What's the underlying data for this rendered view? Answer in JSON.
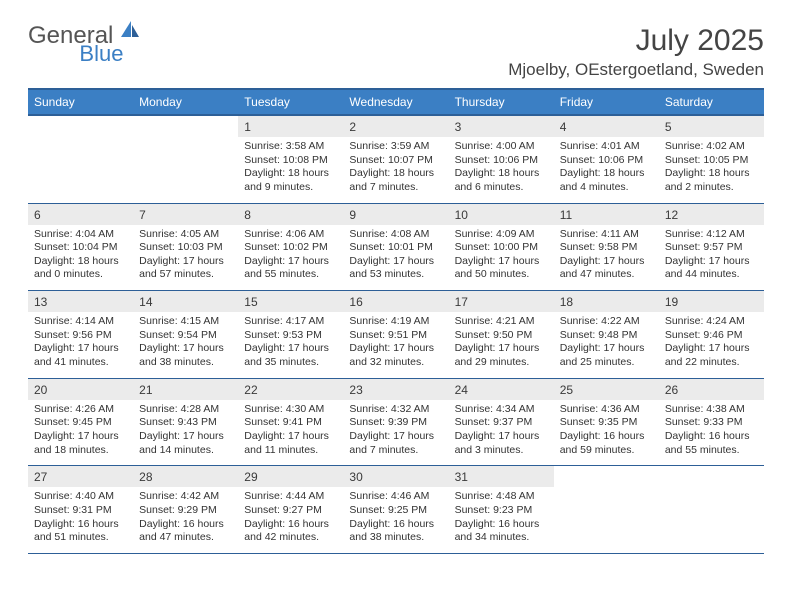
{
  "logo": {
    "text1": "General",
    "text2": "Blue"
  },
  "title": "July 2025",
  "location": "Mjoelby, OEstergoetland, Sweden",
  "colors": {
    "header_bg": "#3b7fc4",
    "header_border": "#2d5f97",
    "daynum_bg": "#ebebeb",
    "text": "#333333",
    "logo_gray": "#555555",
    "logo_blue": "#3b7fc4"
  },
  "weekdays": [
    "Sunday",
    "Monday",
    "Tuesday",
    "Wednesday",
    "Thursday",
    "Friday",
    "Saturday"
  ],
  "weeks": [
    [
      null,
      null,
      {
        "n": "1",
        "sr": "3:58 AM",
        "ss": "10:08 PM",
        "dl": "18 hours and 9 minutes."
      },
      {
        "n": "2",
        "sr": "3:59 AM",
        "ss": "10:07 PM",
        "dl": "18 hours and 7 minutes."
      },
      {
        "n": "3",
        "sr": "4:00 AM",
        "ss": "10:06 PM",
        "dl": "18 hours and 6 minutes."
      },
      {
        "n": "4",
        "sr": "4:01 AM",
        "ss": "10:06 PM",
        "dl": "18 hours and 4 minutes."
      },
      {
        "n": "5",
        "sr": "4:02 AM",
        "ss": "10:05 PM",
        "dl": "18 hours and 2 minutes."
      }
    ],
    [
      {
        "n": "6",
        "sr": "4:04 AM",
        "ss": "10:04 PM",
        "dl": "18 hours and 0 minutes."
      },
      {
        "n": "7",
        "sr": "4:05 AM",
        "ss": "10:03 PM",
        "dl": "17 hours and 57 minutes."
      },
      {
        "n": "8",
        "sr": "4:06 AM",
        "ss": "10:02 PM",
        "dl": "17 hours and 55 minutes."
      },
      {
        "n": "9",
        "sr": "4:08 AM",
        "ss": "10:01 PM",
        "dl": "17 hours and 53 minutes."
      },
      {
        "n": "10",
        "sr": "4:09 AM",
        "ss": "10:00 PM",
        "dl": "17 hours and 50 minutes."
      },
      {
        "n": "11",
        "sr": "4:11 AM",
        "ss": "9:58 PM",
        "dl": "17 hours and 47 minutes."
      },
      {
        "n": "12",
        "sr": "4:12 AM",
        "ss": "9:57 PM",
        "dl": "17 hours and 44 minutes."
      }
    ],
    [
      {
        "n": "13",
        "sr": "4:14 AM",
        "ss": "9:56 PM",
        "dl": "17 hours and 41 minutes."
      },
      {
        "n": "14",
        "sr": "4:15 AM",
        "ss": "9:54 PM",
        "dl": "17 hours and 38 minutes."
      },
      {
        "n": "15",
        "sr": "4:17 AM",
        "ss": "9:53 PM",
        "dl": "17 hours and 35 minutes."
      },
      {
        "n": "16",
        "sr": "4:19 AM",
        "ss": "9:51 PM",
        "dl": "17 hours and 32 minutes."
      },
      {
        "n": "17",
        "sr": "4:21 AM",
        "ss": "9:50 PM",
        "dl": "17 hours and 29 minutes."
      },
      {
        "n": "18",
        "sr": "4:22 AM",
        "ss": "9:48 PM",
        "dl": "17 hours and 25 minutes."
      },
      {
        "n": "19",
        "sr": "4:24 AM",
        "ss": "9:46 PM",
        "dl": "17 hours and 22 minutes."
      }
    ],
    [
      {
        "n": "20",
        "sr": "4:26 AM",
        "ss": "9:45 PM",
        "dl": "17 hours and 18 minutes."
      },
      {
        "n": "21",
        "sr": "4:28 AM",
        "ss": "9:43 PM",
        "dl": "17 hours and 14 minutes."
      },
      {
        "n": "22",
        "sr": "4:30 AM",
        "ss": "9:41 PM",
        "dl": "17 hours and 11 minutes."
      },
      {
        "n": "23",
        "sr": "4:32 AM",
        "ss": "9:39 PM",
        "dl": "17 hours and 7 minutes."
      },
      {
        "n": "24",
        "sr": "4:34 AM",
        "ss": "9:37 PM",
        "dl": "17 hours and 3 minutes."
      },
      {
        "n": "25",
        "sr": "4:36 AM",
        "ss": "9:35 PM",
        "dl": "16 hours and 59 minutes."
      },
      {
        "n": "26",
        "sr": "4:38 AM",
        "ss": "9:33 PM",
        "dl": "16 hours and 55 minutes."
      }
    ],
    [
      {
        "n": "27",
        "sr": "4:40 AM",
        "ss": "9:31 PM",
        "dl": "16 hours and 51 minutes."
      },
      {
        "n": "28",
        "sr": "4:42 AM",
        "ss": "9:29 PM",
        "dl": "16 hours and 47 minutes."
      },
      {
        "n": "29",
        "sr": "4:44 AM",
        "ss": "9:27 PM",
        "dl": "16 hours and 42 minutes."
      },
      {
        "n": "30",
        "sr": "4:46 AM",
        "ss": "9:25 PM",
        "dl": "16 hours and 38 minutes."
      },
      {
        "n": "31",
        "sr": "4:48 AM",
        "ss": "9:23 PM",
        "dl": "16 hours and 34 minutes."
      },
      null,
      null
    ]
  ],
  "labels": {
    "sunrise": "Sunrise:",
    "sunset": "Sunset:",
    "daylight": "Daylight:"
  }
}
